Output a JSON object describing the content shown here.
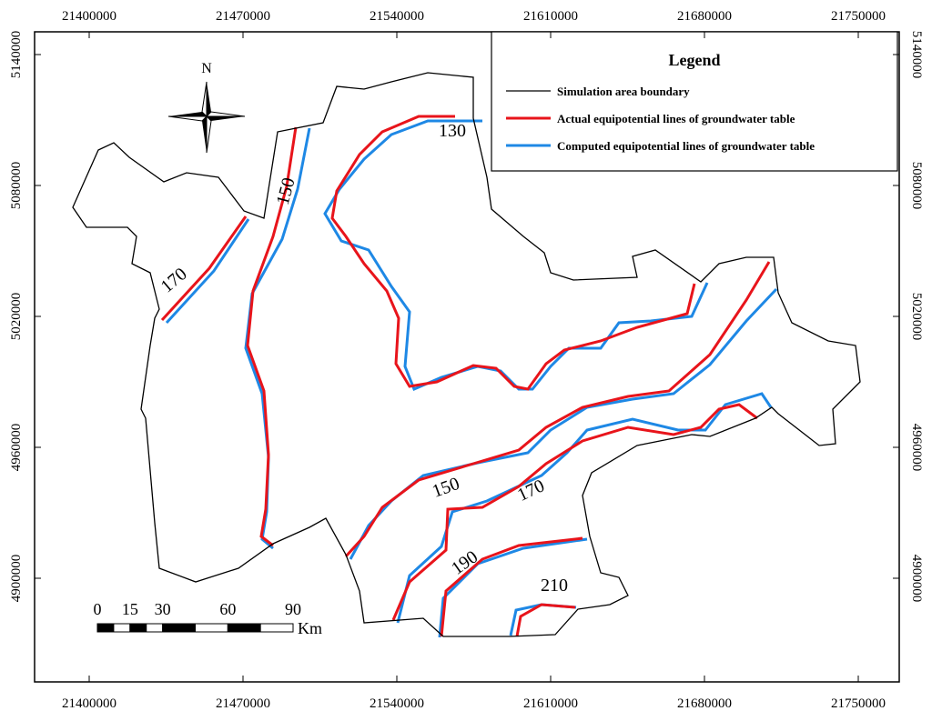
{
  "map": {
    "x_ticks": [
      21400000,
      21470000,
      21540000,
      21610000,
      21680000,
      21750000
    ],
    "y_ticks": [
      5140000,
      5080000,
      5020000,
      4960000,
      4900000
    ],
    "legend": {
      "title": "Legend",
      "entries": [
        "Simulation area boundary",
        "Actual equipotential lines of groundwater table",
        "Computed equipotential lines of groundwater table"
      ]
    },
    "contour_labels": [
      "130",
      "150",
      "170",
      "150",
      "170",
      "190",
      "210"
    ],
    "north_label": "N",
    "scale_bar": {
      "ticks": [
        0,
        15,
        30,
        60,
        90
      ],
      "unit": "Km"
    }
  }
}
